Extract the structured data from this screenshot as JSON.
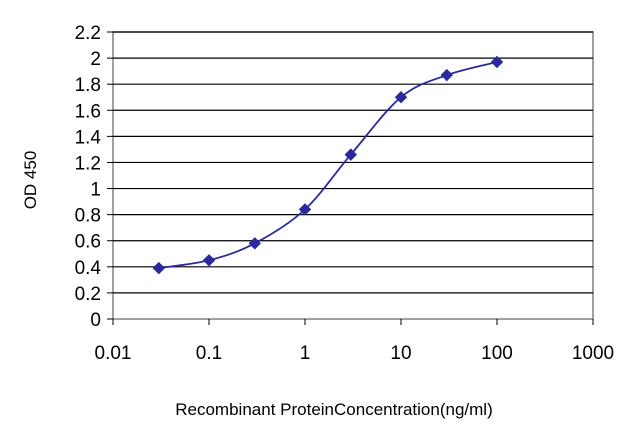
{
  "chart_data": {
    "type": "line",
    "title": "",
    "xlabel": "Recombinant ProteinConcentration(ng/ml)",
    "ylabel": "OD 450",
    "x_scale": "log",
    "xlim": [
      0.01,
      1000
    ],
    "ylim": [
      0,
      2.2
    ],
    "x_ticks": [
      "0.01",
      "0.1",
      "1",
      "10",
      "100",
      "1000"
    ],
    "y_ticks": [
      "0",
      "0.2",
      "0.4",
      "0.6",
      "0.8",
      "1",
      "1.2",
      "1.4",
      "1.6",
      "1.8",
      "2",
      "2.2"
    ],
    "grid": "horizontal",
    "legend": "none",
    "series": [
      {
        "x": [
          0.03,
          0.1,
          0.3,
          1,
          3,
          10,
          30,
          100
        ],
        "y": [
          0.39,
          0.45,
          0.58,
          0.84,
          1.26,
          1.7,
          1.87,
          1.97
        ],
        "color": "#2a2a9e"
      }
    ],
    "colors": {
      "grid": "#000000",
      "plot_bg": "#ffffff",
      "line": "#2a2a9e"
    }
  }
}
